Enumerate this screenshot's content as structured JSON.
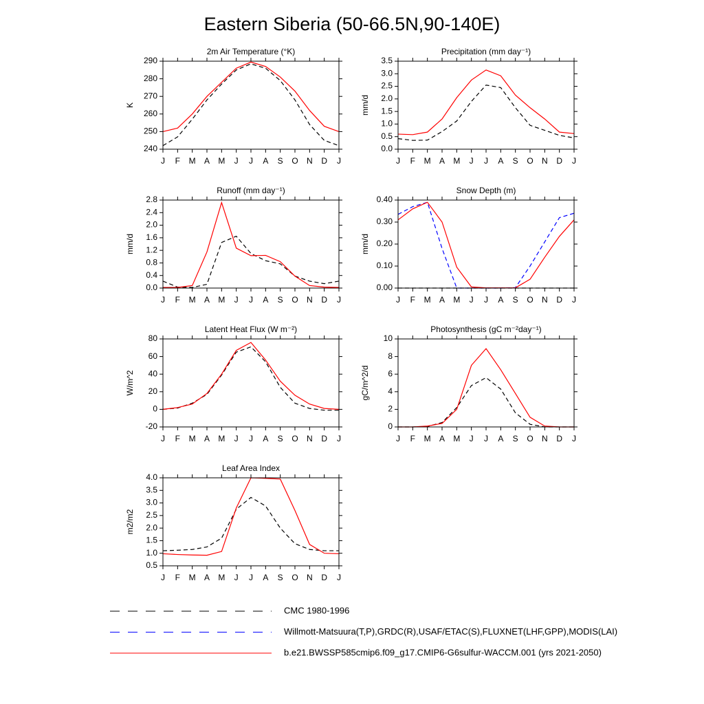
{
  "title": "Eastern Siberia (50-66.5N,90-140E)",
  "legend": [
    {
      "label": "CMC 1980-1996",
      "color": "#000000",
      "dash": true
    },
    {
      "label": "Willmott-Matsuura(T,P),GRDC(R),USAF/ETAC(S),FLUXNET(LHF,GPP),MODIS(LAI)",
      "color": "#0000ff",
      "dash": true
    },
    {
      "label": "b.e21.BWSSP585cmip6.f09_g17.CMIP6-G6sulfur-WACCM.001 (yrs 2021-2050)",
      "color": "#ff0000",
      "dash": false
    }
  ],
  "chart_data": [
    {
      "type": "line",
      "title": "2m Air Temperature (°K)",
      "y_label": "K",
      "categories": [
        "J",
        "F",
        "M",
        "A",
        "M",
        "J",
        "J",
        "A",
        "S",
        "O",
        "N",
        "D",
        "J"
      ],
      "ylim": [
        240,
        290
      ],
      "yticks": [
        240,
        250,
        260,
        270,
        280,
        290
      ],
      "series": [
        {
          "color": "#000000",
          "dash": true,
          "values": [
            242,
            247,
            257,
            268,
            277,
            285,
            288.5,
            286,
            279,
            268,
            254,
            245,
            242
          ]
        },
        {
          "color": "#ff0000",
          "dash": false,
          "values": [
            250,
            252,
            260,
            270,
            278,
            286,
            289.5,
            287,
            281,
            273,
            262,
            253,
            250
          ]
        }
      ]
    },
    {
      "type": "line",
      "title": "Precipitation (mm day⁻¹)",
      "y_label": "mm/d",
      "categories": [
        "J",
        "F",
        "M",
        "A",
        "M",
        "J",
        "J",
        "A",
        "S",
        "O",
        "N",
        "D",
        "J"
      ],
      "ylim": [
        0,
        3.5
      ],
      "yticks": [
        {
          "value": 0,
          "label": "0.0"
        },
        0.5,
        {
          "value": 1,
          "label": "1.0"
        },
        1.5,
        {
          "value": 2,
          "label": "2.0"
        },
        2.5,
        {
          "value": 3,
          "label": "3.0"
        },
        3.5
      ],
      "series": [
        {
          "color": "#000000",
          "dash": true,
          "values": [
            0.42,
            0.35,
            0.36,
            0.7,
            1.12,
            1.9,
            2.55,
            2.45,
            1.65,
            0.95,
            0.75,
            0.55,
            0.45
          ]
        },
        {
          "color": "#ff0000",
          "dash": false,
          "values": [
            0.6,
            0.58,
            0.68,
            1.2,
            2.05,
            2.75,
            3.15,
            2.92,
            2.15,
            1.65,
            1.2,
            0.68,
            0.62
          ]
        }
      ]
    },
    {
      "type": "line",
      "title": "Runoff (mm day⁻¹)",
      "y_label": "mm/d",
      "categories": [
        "J",
        "F",
        "M",
        "A",
        "M",
        "J",
        "J",
        "A",
        "S",
        "O",
        "N",
        "D",
        "J"
      ],
      "ylim": [
        0,
        2.8
      ],
      "yticks": [
        {
          "value": 0,
          "label": "0.0"
        },
        0.4,
        0.8,
        1.2,
        1.6,
        {
          "value": 2,
          "label": "2.0"
        },
        2.4,
        2.8
      ],
      "series": [
        {
          "color": "#000000",
          "dash": true,
          "values": [
            0.22,
            0.03,
            0.02,
            0.12,
            1.45,
            1.65,
            1.1,
            0.87,
            0.77,
            0.38,
            0.22,
            0.14,
            0.22
          ]
        },
        {
          "color": "#ff0000",
          "dash": false,
          "values": [
            0.02,
            0.02,
            0.08,
            1.15,
            2.72,
            1.27,
            1.03,
            1.04,
            0.84,
            0.38,
            0.08,
            0.03,
            0.02
          ]
        }
      ]
    },
    {
      "type": "line",
      "title": "Snow Depth (m)",
      "y_label": "mm/d",
      "categories": [
        "J",
        "F",
        "M",
        "A",
        "M",
        "J",
        "J",
        "A",
        "S",
        "O",
        "N",
        "D",
        "J"
      ],
      "ylim": [
        0,
        0.4
      ],
      "yticks": [
        {
          "value": 0,
          "label": "0.00"
        },
        {
          "value": 0.1,
          "label": "0.10"
        },
        {
          "value": 0.2,
          "label": "0.20"
        },
        {
          "value": 0.3,
          "label": "0.30"
        },
        {
          "value": 0.4,
          "label": "0.40"
        }
      ],
      "series": [
        {
          "color": "#000000",
          "dash": true,
          "values": [
            0,
            0,
            0,
            0,
            0,
            0,
            0,
            0,
            0,
            0,
            0,
            0,
            0
          ]
        },
        {
          "color": "#0000ff",
          "dash": true,
          "values": [
            0.335,
            0.37,
            0.39,
            0.18,
            0,
            0,
            0,
            0,
            0.002,
            0.1,
            0.21,
            0.32,
            0.34
          ]
        },
        {
          "color": "#ff0000",
          "dash": false,
          "values": [
            0.31,
            0.36,
            0.39,
            0.3,
            0.095,
            0.005,
            0.001,
            0.001,
            0.001,
            0.04,
            0.14,
            0.235,
            0.31
          ]
        }
      ]
    },
    {
      "type": "line",
      "title": "Latent Heat Flux (W m⁻²)",
      "y_label": "W/m^2",
      "categories": [
        "J",
        "F",
        "M",
        "A",
        "M",
        "J",
        "J",
        "A",
        "S",
        "O",
        "N",
        "D",
        "J"
      ],
      "ylim": [
        -20,
        80
      ],
      "yticks": [
        -20,
        0,
        20,
        40,
        60,
        80
      ],
      "series": [
        {
          "color": "#000000",
          "dash": true,
          "values": [
            0,
            1.5,
            7,
            17,
            39,
            65,
            71,
            54,
            25,
            7,
            1,
            -1,
            -1
          ]
        },
        {
          "color": "#ff0000",
          "dash": false,
          "values": [
            0,
            2,
            6,
            18,
            40,
            67,
            76,
            56,
            32,
            16,
            6,
            1,
            0
          ]
        }
      ]
    },
    {
      "type": "line",
      "title": "Photosynthesis (gC m⁻²day⁻¹)",
      "y_label": "gC/m^2/d",
      "categories": [
        "J",
        "F",
        "M",
        "A",
        "M",
        "J",
        "J",
        "A",
        "S",
        "O",
        "N",
        "D",
        "J"
      ],
      "ylim": [
        0,
        10
      ],
      "yticks": [
        0,
        2,
        4,
        6,
        8,
        10
      ],
      "series": [
        {
          "color": "#000000",
          "dash": true,
          "values": [
            0,
            0,
            0.05,
            0.5,
            2.2,
            4.7,
            5.6,
            4.3,
            1.6,
            0.3,
            0,
            0,
            0
          ]
        },
        {
          "color": "#ff0000",
          "dash": false,
          "values": [
            0,
            0,
            0.1,
            0.4,
            2.0,
            7.0,
            8.9,
            6.5,
            3.8,
            1.1,
            0.1,
            0,
            0
          ]
        }
      ]
    },
    {
      "type": "line",
      "title": "Leaf Area Index",
      "y_label": "m2/m2",
      "categories": [
        "J",
        "F",
        "M",
        "A",
        "M",
        "J",
        "J",
        "A",
        "S",
        "O",
        "N",
        "D",
        "J"
      ],
      "ylim": [
        0.5,
        4.0
      ],
      "yticks": [
        0.5,
        {
          "value": 1,
          "label": "1.0"
        },
        1.5,
        {
          "value": 2,
          "label": "2.0"
        },
        2.5,
        {
          "value": 3,
          "label": "3.0"
        },
        3.5,
        {
          "value": 4,
          "label": "4.0"
        }
      ],
      "series": [
        {
          "color": "#000000",
          "dash": true,
          "values": [
            1.1,
            1.12,
            1.15,
            1.25,
            1.6,
            2.75,
            3.22,
            2.88,
            2.0,
            1.38,
            1.15,
            1.1,
            1.1
          ]
        },
        {
          "color": "#ff0000",
          "dash": false,
          "values": [
            0.98,
            0.95,
            0.93,
            0.92,
            1.07,
            2.8,
            4.0,
            3.98,
            3.95,
            2.7,
            1.35,
            1.0,
            0.98
          ]
        }
      ]
    }
  ]
}
